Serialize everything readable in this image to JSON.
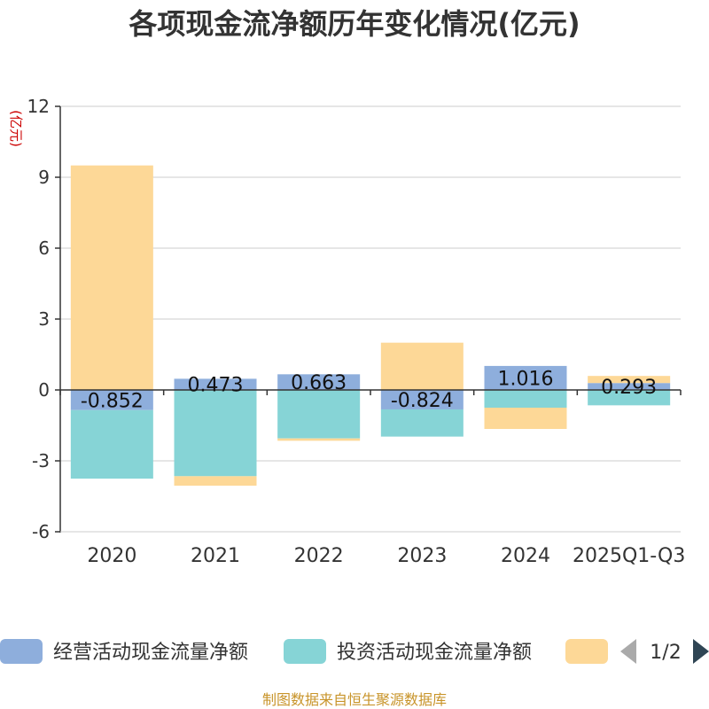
{
  "chart_data": {
    "type": "bar",
    "stacked": true,
    "title": "各项现金流净额历年变化情况(亿元)",
    "ylabel": "(亿元)",
    "xlabel": "",
    "ylim": [
      -6,
      12
    ],
    "yticks": [
      12,
      9,
      6,
      3,
      0,
      -3,
      -6
    ],
    "categories": [
      "2020",
      "2021",
      "2022",
      "2023",
      "2024",
      "2025Q1-Q3"
    ],
    "series": [
      {
        "name": "经营活动现金流量净额",
        "color": "#8eaedc",
        "values": [
          -0.852,
          0.473,
          0.663,
          -0.824,
          1.016,
          0.293
        ],
        "labels": [
          "-0.852",
          "0.473",
          "0.663",
          "-0.824",
          "1.016",
          "0.293"
        ]
      },
      {
        "name": "投资活动现金流量净额",
        "color": "#86d4d6",
        "values": [
          -2.9,
          -3.65,
          -2.05,
          -1.15,
          -0.75,
          -0.65
        ]
      },
      {
        "name": "",
        "color": "#fdd897",
        "values": [
          9.5,
          -0.4,
          -0.1,
          2.0,
          -0.9,
          0.3
        ]
      }
    ],
    "legend": {
      "position": "bottom",
      "page": "1/2"
    },
    "source": "制图数据来自恒生聚源数据库"
  }
}
